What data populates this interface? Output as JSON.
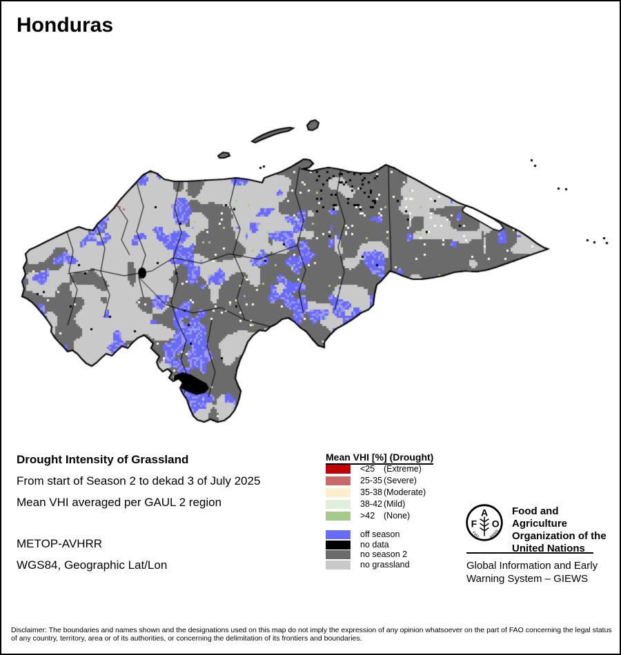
{
  "page": {
    "title": "Honduras"
  },
  "caption": {
    "heading": "Drought Intensity of Grassland",
    "period_line": "From start of Season 2 to dekad 3 of July 2025",
    "method_line": "Mean VHI averaged per GAUL 2 region",
    "sensor": "METOP-AVHRR",
    "projection": "WGS84, Geographic Lat/Lon"
  },
  "legend": {
    "title": "Mean VHI [%] (Drought)",
    "vhi_rows": [
      {
        "value": "<25",
        "severity": "(Extreme)",
        "color": "#c00000"
      },
      {
        "value": "25-35",
        "severity": "(Severe)",
        "color": "#c86a6a"
      },
      {
        "value": "35-38",
        "severity": "(Moderate)",
        "color": "#fdeecb"
      },
      {
        "value": "38-42",
        "severity": "(Mild)",
        "color": "#e1eedb"
      },
      {
        "value": ">42",
        "severity": "(None)",
        "color": "#a6ca8a"
      }
    ],
    "class_rows": [
      {
        "label": "off season",
        "color": "#6a6af8"
      },
      {
        "label": "no data",
        "color": "#000000"
      },
      {
        "label": "no season 2",
        "color": "#6b6b6b"
      },
      {
        "label": "no grassland",
        "color": "#c9c9c9"
      }
    ]
  },
  "map": {
    "country": "Honduras",
    "palette": {
      "dark": "#6b6b6b",
      "light": "#c9c9c9",
      "blue": "#6a6af8",
      "lavender": "#9a9af2",
      "black": "#000000",
      "white": "#ffffff",
      "green": "#a6ca8a",
      "cream": "#fdeecb",
      "severe": "#c86a6a",
      "extreme": "#c00000",
      "outline": "#000000"
    }
  },
  "org": {
    "fao_name": "Food and Agriculture Organization of the United Nations",
    "giews_name": "Global Information and Early Warning System – GIEWS",
    "logo": {
      "f": "F",
      "a": "A",
      "o": "O",
      "fiat": "FIAT",
      "panis": "PANIS"
    }
  },
  "disclaimer": "Disclaimer: The boundaries and names shown and the designations used on this map do not imply the expression of any opinion whatsoever on the part of FAO concerning the legal status of any country, territory, area or of its authorities, or concerning the delimitation of its frontiers and boundaries."
}
